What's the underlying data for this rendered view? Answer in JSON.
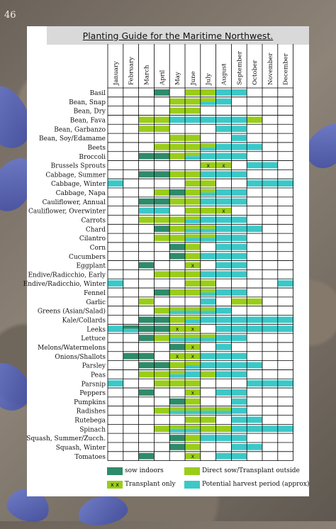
{
  "page_number": "46",
  "title": "Planting Guide for the Maritime Northwest.",
  "colors": {
    "sow_indoors": "#2e8b6a",
    "direct_sow": "#9acd1a",
    "harvest": "#3cc8c8",
    "transplant_mark": "#9acd1a"
  },
  "legend": {
    "sow_indoors": "sow indoors",
    "direct_sow": "Direct sow/Transplant outside",
    "transplant_only": "Transplant only",
    "transplant_mark": "x x",
    "harvest": "Potential harvest period (approx)"
  },
  "chart_data": {
    "type": "table",
    "months": [
      "January",
      "February",
      "March",
      "April",
      "May",
      "June",
      "July",
      "August",
      "September",
      "October",
      "November",
      "December"
    ],
    "cell_mark": "x",
    "rows": [
      {
        "name": "Basil",
        "indoor": [
          4
        ],
        "direct": [
          6,
          7
        ],
        "harvest": [
          8,
          9
        ]
      },
      {
        "name": "Bean, Snap",
        "indoor": [],
        "direct": [
          5,
          6,
          7
        ],
        "harvest": [
          7,
          8
        ]
      },
      {
        "name": "Bean, Dry",
        "indoor": [],
        "direct": [
          5,
          6
        ],
        "harvest": []
      },
      {
        "name": "Bean, Fava",
        "indoor": [],
        "direct": [
          3,
          4,
          10
        ],
        "harvest": [
          5,
          6,
          7,
          8,
          9
        ]
      },
      {
        "name": "Bean, Garbanzo",
        "indoor": [],
        "direct": [
          3,
          4
        ],
        "harvest": [
          8,
          9
        ]
      },
      {
        "name": "Bean, Soy/Edamame",
        "indoor": [],
        "direct": [
          5,
          6
        ],
        "harvest": [
          9
        ]
      },
      {
        "name": "Beets",
        "indoor": [],
        "direct": [
          4,
          5,
          6,
          7
        ],
        "harvest": [
          7,
          8,
          9,
          10
        ]
      },
      {
        "name": "Broccoli",
        "indoor": [
          3,
          4
        ],
        "direct": [
          5,
          6
        ],
        "harvest": [
          6,
          7,
          8,
          9
        ]
      },
      {
        "name": "Brussels Sprouts",
        "indoor": [],
        "direct": [],
        "transplant": [
          7,
          8
        ],
        "harvest": [
          10,
          11
        ]
      },
      {
        "name": "Cabbage, Summer",
        "indoor": [
          3,
          4
        ],
        "direct": [
          5,
          6
        ],
        "harvest": [
          7,
          8,
          9
        ]
      },
      {
        "name": "Cabbage, Winter",
        "indoor": [],
        "direct": [
          6,
          7
        ],
        "harvest": [
          1,
          10,
          11,
          12
        ]
      },
      {
        "name": "Cabbage, Napa",
        "indoor": [
          5
        ],
        "direct": [
          4,
          6,
          7
        ],
        "harvest": [
          7,
          8,
          9
        ]
      },
      {
        "name": "Cauliflower, Annual",
        "indoor": [
          3,
          4
        ],
        "direct": [
          4,
          5,
          6
        ],
        "harvest": [
          7,
          8,
          9
        ]
      },
      {
        "name": "Cauliflower, Overwinter",
        "indoor": [],
        "direct": [
          6,
          7
        ],
        "transplant": [
          8
        ],
        "harvest": [
          3,
          4
        ]
      },
      {
        "name": "Carrots",
        "indoor": [],
        "direct": [
          3,
          4,
          5,
          6
        ],
        "harvest": [
          6,
          7,
          8,
          9
        ]
      },
      {
        "name": "Chard",
        "indoor": [
          4
        ],
        "direct": [
          5,
          6,
          7
        ],
        "harvest": [
          6,
          7,
          8,
          9,
          10
        ]
      },
      {
        "name": "Cilantro",
        "indoor": [],
        "direct": [
          4,
          5,
          6,
          7
        ],
        "harvest": [
          6,
          7,
          8,
          9
        ]
      },
      {
        "name": "Corn",
        "indoor": [
          5
        ],
        "direct": [
          6
        ],
        "harvest": [
          8,
          9
        ]
      },
      {
        "name": "Cucumbers",
        "indoor": [
          5
        ],
        "direct": [
          6
        ],
        "harvest": [
          7,
          8,
          9
        ]
      },
      {
        "name": "Eggplant",
        "indoor": [
          3
        ],
        "direct": [],
        "transplant": [
          6
        ],
        "harvest": [
          8,
          9
        ]
      },
      {
        "name": "Endive/Radicchio, Early",
        "indoor": [],
        "direct": [
          4,
          5,
          6
        ],
        "harvest": [
          7,
          8,
          9
        ]
      },
      {
        "name": "Endive/Radicchio, Winter",
        "indoor": [],
        "direct": [
          6,
          7
        ],
        "harvest": [
          1,
          12
        ]
      },
      {
        "name": "Fennel",
        "indoor": [
          4
        ],
        "direct": [
          5,
          6,
          7
        ],
        "harvest": [
          7,
          8,
          9
        ]
      },
      {
        "name": "Garlic",
        "indoor": [],
        "direct": [
          3,
          9,
          10
        ],
        "harvest": [
          7
        ]
      },
      {
        "name": "Greens (Asian/Salad)",
        "indoor": [],
        "direct": [
          4,
          5,
          6,
          7
        ],
        "harvest": [
          5,
          6,
          7,
          8
        ]
      },
      {
        "name": "Kale/Collards",
        "indoor": [
          3,
          4
        ],
        "direct": [
          5,
          6
        ],
        "harvest": [
          6,
          7,
          8,
          9,
          10,
          11,
          12
        ]
      },
      {
        "name": "Leeks",
        "indoor": [
          2,
          3,
          4
        ],
        "direct": [],
        "transplant": [
          5,
          6
        ],
        "harvest": [
          1,
          2,
          8,
          9,
          10,
          11,
          12
        ]
      },
      {
        "name": "Lettuce",
        "indoor": [
          3
        ],
        "direct": [
          4,
          5,
          6,
          7
        ],
        "harvest": [
          5,
          6,
          7,
          8,
          9
        ]
      },
      {
        "name": "Melons/Watermelons",
        "indoor": [
          5
        ],
        "direct": [],
        "transplant": [
          6
        ],
        "harvest": [
          8
        ]
      },
      {
        "name": "Onions/Shallots",
        "indoor": [
          2,
          3
        ],
        "direct": [],
        "transplant": [
          5,
          6
        ],
        "harvest": [
          7,
          8,
          9
        ]
      },
      {
        "name": "Parsley",
        "indoor": [
          3,
          4
        ],
        "direct": [
          5,
          6
        ],
        "harvest": [
          6,
          7,
          8,
          9,
          10
        ]
      },
      {
        "name": "Peas",
        "indoor": [],
        "direct": [
          3,
          4,
          5,
          7
        ],
        "harvest": [
          5,
          6,
          8,
          9
        ]
      },
      {
        "name": "Parsnip",
        "indoor": [],
        "direct": [
          4,
          5,
          6
        ],
        "harvest": [
          1,
          10,
          11,
          12
        ]
      },
      {
        "name": "Peppers",
        "indoor": [
          3
        ],
        "direct": [],
        "transplant": [
          6
        ],
        "harvest": [
          8,
          9
        ]
      },
      {
        "name": "Pumpkins",
        "indoor": [
          5
        ],
        "direct": [
          6
        ],
        "harvest": [
          9
        ]
      },
      {
        "name": "Radishes",
        "indoor": [],
        "direct": [
          4,
          5,
          6,
          7,
          8
        ],
        "harvest": [
          5,
          6,
          7,
          8,
          9
        ]
      },
      {
        "name": "Rutebega",
        "indoor": [],
        "direct": [
          6,
          7
        ],
        "harvest": [
          9,
          10
        ]
      },
      {
        "name": "Spinach",
        "indoor": [],
        "direct": [
          4,
          5,
          6,
          7,
          8
        ],
        "harvest": [
          5,
          6,
          9,
          10,
          11,
          12
        ]
      },
      {
        "name": "Squash, Summer/Zucch.",
        "indoor": [
          5
        ],
        "direct": [
          6
        ],
        "harvest": [
          7,
          8,
          9
        ]
      },
      {
        "name": "Squash, Winter",
        "indoor": [
          5
        ],
        "direct": [
          6
        ],
        "harvest": [
          9,
          10
        ]
      },
      {
        "name": "Tomatoes",
        "indoor": [
          3
        ],
        "direct": [],
        "transplant": [
          6
        ],
        "harvest": [
          8,
          9
        ]
      }
    ]
  }
}
